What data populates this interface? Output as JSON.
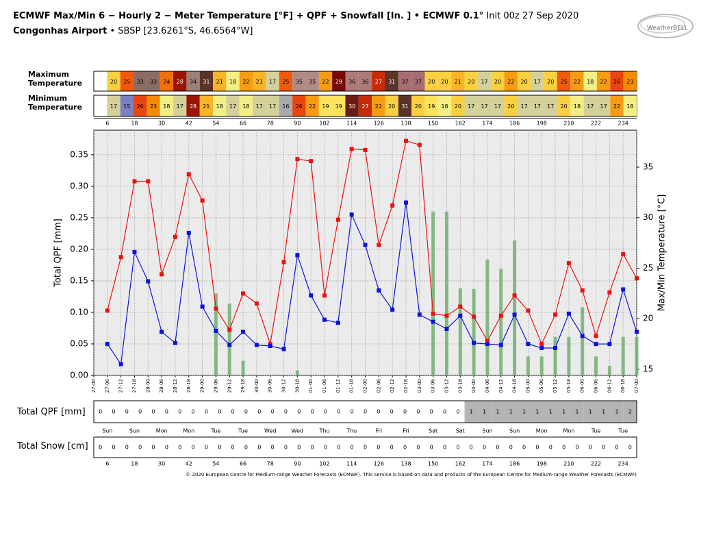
{
  "chart_data": {
    "type": "line",
    "title": "ECMWF Max/Min 6 − Hourly 2 − Meter Temperature [°F] + QPF + Snowfall [In. ] • ECMWF 0.1°",
    "title_suffix": "Init 00z 27 Sep 2020",
    "subtitle": "Congonhas Airport",
    "subtitle_suffix": "• SBSP [23.6261°S, 46.6564°W]",
    "logo": "WeatherBELL",
    "footer": "© 2020 European Centre for Medium-range Weather Forecasts (ECMWF). This service is based on data and products of the European Centre for Medium-range Weather Forecasts (ECMWF)",
    "categories": [
      "27-00",
      "27-06",
      "27-12",
      "27-18",
      "28-00",
      "28-06",
      "28-12",
      "28-18",
      "29-00",
      "29-06",
      "29-12",
      "29-18",
      "30-00",
      "30-06",
      "30-12",
      "30-18",
      "01-00",
      "01-06",
      "01-12",
      "01-18",
      "02-00",
      "02-06",
      "02-12",
      "02-18",
      "03-00",
      "03-06",
      "03-12",
      "03-18",
      "04-00",
      "04-06",
      "04-12",
      "04-18",
      "05-00",
      "05-06",
      "05-12",
      "05-18",
      "06-00",
      "06-06",
      "06-12",
      "06-18",
      "07-00"
    ],
    "series": [
      {
        "type": "bar",
        "color": "#72b072",
        "values": [
          0,
          0,
          0,
          0,
          0,
          0,
          0,
          0,
          0,
          0.13,
          0.114,
          0.023,
          0,
          0,
          0,
          0.008,
          0,
          0,
          0,
          0,
          0,
          0,
          0,
          0,
          0,
          0.26,
          0.26,
          0.138,
          0.137,
          0.184,
          0.169,
          0.214,
          0.03,
          0.03,
          0.061,
          0.061,
          0.108,
          0.03,
          0.015,
          0.061,
          0.061
        ]
      },
      {
        "type": "line",
        "axis": "y2",
        "color": "#e8130f",
        "values": [
          null,
          20.8,
          26.1,
          33.6,
          33.6,
          24.4,
          28.1,
          34.3,
          31.7,
          21.0,
          18.9,
          22.5,
          21.5,
          17.5,
          25.6,
          35.8,
          35.6,
          22.3,
          29.8,
          36.8,
          36.7,
          27.3,
          31.2,
          37.6,
          37.2,
          20.5,
          20.3,
          21.2,
          20.2,
          17.8,
          20.3,
          22.3,
          20.8,
          17.5,
          20.4,
          25.5,
          22.8,
          18.3,
          22.6,
          26.4,
          24.0
        ]
      },
      {
        "type": "line",
        "axis": "y2",
        "color": "#0a14d8",
        "values": [
          null,
          17.5,
          15.5,
          26.6,
          23.7,
          18.7,
          17.6,
          28.5,
          21.2,
          18.8,
          17.4,
          18.7,
          17.4,
          17.3,
          17.0,
          26.3,
          22.3,
          19.9,
          19.6,
          30.3,
          27.3,
          22.8,
          20.9,
          31.5,
          20.4,
          19.7,
          19.0,
          20.3,
          17.6,
          17.5,
          17.4,
          20.4,
          17.5,
          17.1,
          17.1,
          20.5,
          18.3,
          17.5,
          17.5,
          22.9,
          18.7
        ]
      }
    ],
    "ylabel": "Total QPF  [mm]",
    "y2label": "Max/Min Temperature  [°C]",
    "ylim": [
      0,
      0.389
    ],
    "yticks": [
      {
        "value": 0,
        "label": "0.00"
      },
      {
        "value": 0.05,
        "label": "0.05"
      },
      {
        "value": 0.1,
        "label": "0.10"
      },
      {
        "value": 0.15,
        "label": "0.15"
      },
      {
        "value": 0.2,
        "label": "0.20"
      },
      {
        "value": 0.25,
        "label": "0.25"
      },
      {
        "value": 0.3,
        "label": "0.30"
      },
      {
        "value": 0.35,
        "label": "0.35"
      }
    ],
    "y2lim": [
      14.39,
      38.66
    ],
    "y2ticks": [
      15,
      20,
      25,
      30,
      35
    ],
    "grid": true,
    "max_temperature": {
      "label": "Maximum Temperature",
      "values": [
        20,
        25,
        33,
        33,
        24,
        28,
        34,
        31,
        21,
        18,
        22,
        21,
        17,
        25,
        35,
        35,
        22,
        29,
        36,
        36,
        27,
        31,
        37,
        37,
        20,
        20,
        21,
        20,
        17,
        20,
        22,
        20,
        17,
        20,
        25,
        22,
        18,
        22,
        26,
        23
      ]
    },
    "min_temperature": {
      "label": "Minimum Temperature",
      "values": [
        17,
        15,
        26,
        23,
        18,
        17,
        28,
        21,
        18,
        17,
        18,
        17,
        17,
        16,
        26,
        22,
        19,
        19,
        30,
        27,
        22,
        20,
        31,
        20,
        19,
        18,
        20,
        17,
        17,
        17,
        20,
        17,
        17,
        17,
        20,
        18,
        17,
        17,
        22,
        18
      ]
    },
    "cell_colors": {
      "15": "#7a80c2",
      "16": "#a9a9a9",
      "17": "#d3d09a",
      "18": "#f3ee84",
      "19": "#fde35c",
      "20": "#fbd040",
      "21": "#f8b426",
      "22": "#f69b12",
      "23": "#f58a04",
      "24": "#f2700a",
      "25": "#f05a0c",
      "26": "#e8460e",
      "27": "#c62c06",
      "28": "#9c1404",
      "29": "#780a06",
      "30": "#6a1c16",
      "31": "#5a3428",
      "33": "#8a6c64",
      "34": "#9a8078",
      "35": "#b08a84",
      "36": "#ad7a78",
      "37": "#a66e70"
    },
    "hours": [
      6,
      18,
      30,
      42,
      54,
      66,
      78,
      90,
      102,
      114,
      126,
      138,
      150,
      162,
      174,
      186,
      198,
      210,
      222,
      234
    ],
    "days": [
      "Sun",
      "Sun",
      "Mon",
      "Mon",
      "Tue",
      "Tue",
      "Wed",
      "Wed",
      "Thu",
      "Thu",
      "Fri",
      "Fri",
      "Sat",
      "Sat",
      "Sun",
      "Sun",
      "Mon",
      "Mon",
      "Tue",
      "Tue"
    ],
    "total_qpf": {
      "label": "Total QPF [mm]",
      "color": "#b4b4b4",
      "values": [
        0,
        0,
        0,
        0,
        0,
        0,
        0,
        0,
        0,
        0,
        0,
        0,
        0,
        0,
        0,
        0,
        0,
        0,
        0,
        0,
        0,
        0,
        0,
        0,
        0,
        0,
        0,
        0,
        1,
        1,
        1,
        1,
        1,
        1,
        1,
        1,
        1,
        1,
        1,
        1,
        2
      ]
    },
    "total_snow": {
      "label": "Total Snow [cm]",
      "color": "#b4b4b4",
      "values": [
        0,
        0,
        0,
        0,
        0,
        0,
        0,
        0,
        0,
        0,
        0,
        0,
        0,
        0,
        0,
        0,
        0,
        0,
        0,
        0,
        0,
        0,
        0,
        0,
        0,
        0,
        0,
        0,
        0,
        0,
        0,
        0,
        0,
        0,
        0,
        0,
        0,
        0,
        0,
        0,
        0
      ]
    }
  }
}
